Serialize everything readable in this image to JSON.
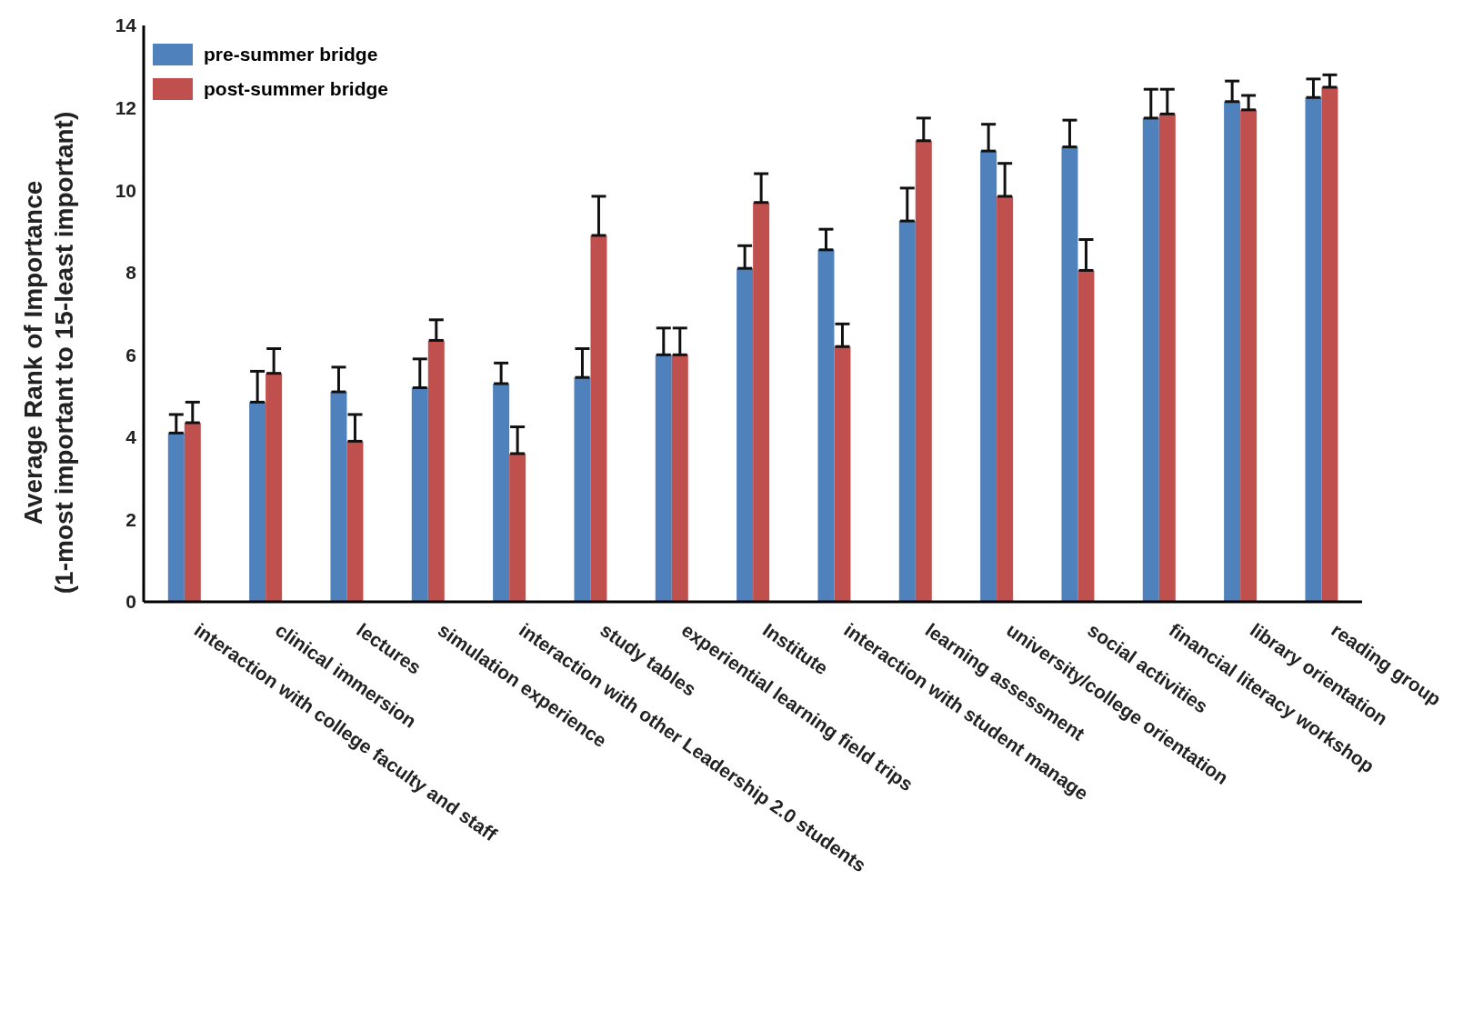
{
  "chart_data": {
    "type": "bar",
    "ylabel": "Average Rank of Importance\n(1-most important to 15-least important)",
    "categories": [
      "interaction with college faculty and staff",
      "clinical immersion",
      "lectures",
      "simulation experience",
      "interaction with other Leadership 2.0 students",
      "study tables",
      "experiential learning field trips",
      "Institute",
      "interaction with student manage",
      "learning assessment",
      "university/college orientation",
      "social activities",
      "financial literacy workshop",
      "library orientation",
      "reading group"
    ],
    "series": [
      {
        "name": "pre-summer bridge",
        "color": "#4f81bd",
        "values": [
          4.1,
          4.85,
          5.1,
          5.2,
          5.3,
          5.45,
          6.0,
          8.1,
          8.55,
          9.25,
          10.95,
          11.05,
          11.75,
          12.15,
          12.25
        ],
        "errors": [
          [
            4.1,
            4.55
          ],
          [
            4.85,
            5.6
          ],
          [
            5.1,
            5.7
          ],
          [
            5.2,
            5.9
          ],
          [
            5.3,
            5.8
          ],
          [
            5.45,
            6.15
          ],
          [
            6.0,
            6.65
          ],
          [
            8.1,
            8.65
          ],
          [
            8.55,
            9.05
          ],
          [
            9.25,
            10.05
          ],
          [
            10.95,
            11.6
          ],
          [
            11.05,
            11.7
          ],
          [
            11.75,
            12.45
          ],
          [
            12.15,
            12.65
          ],
          [
            12.25,
            12.7
          ]
        ]
      },
      {
        "name": "post-summer bridge",
        "color": "#c0504d",
        "values": [
          4.35,
          5.55,
          3.9,
          6.35,
          3.6,
          8.9,
          6.0,
          9.7,
          6.2,
          11.2,
          9.85,
          8.05,
          11.85,
          11.95,
          12.5
        ],
        "errors": [
          [
            4.35,
            4.85
          ],
          [
            5.55,
            6.15
          ],
          [
            3.9,
            4.55
          ],
          [
            6.35,
            6.85
          ],
          [
            3.6,
            4.25
          ],
          [
            8.9,
            9.85
          ],
          [
            6.0,
            6.65
          ],
          [
            9.7,
            10.4
          ],
          [
            6.2,
            6.75
          ],
          [
            11.2,
            11.75
          ],
          [
            9.85,
            10.65
          ],
          [
            8.05,
            8.8
          ],
          [
            11.85,
            12.45
          ],
          [
            11.95,
            12.3
          ],
          [
            12.5,
            12.8
          ]
        ]
      }
    ],
    "ylim": [
      0,
      14
    ],
    "yticks": [
      0,
      2,
      4,
      6,
      8,
      10,
      12,
      14
    ],
    "grid": false,
    "legend": "top left"
  }
}
